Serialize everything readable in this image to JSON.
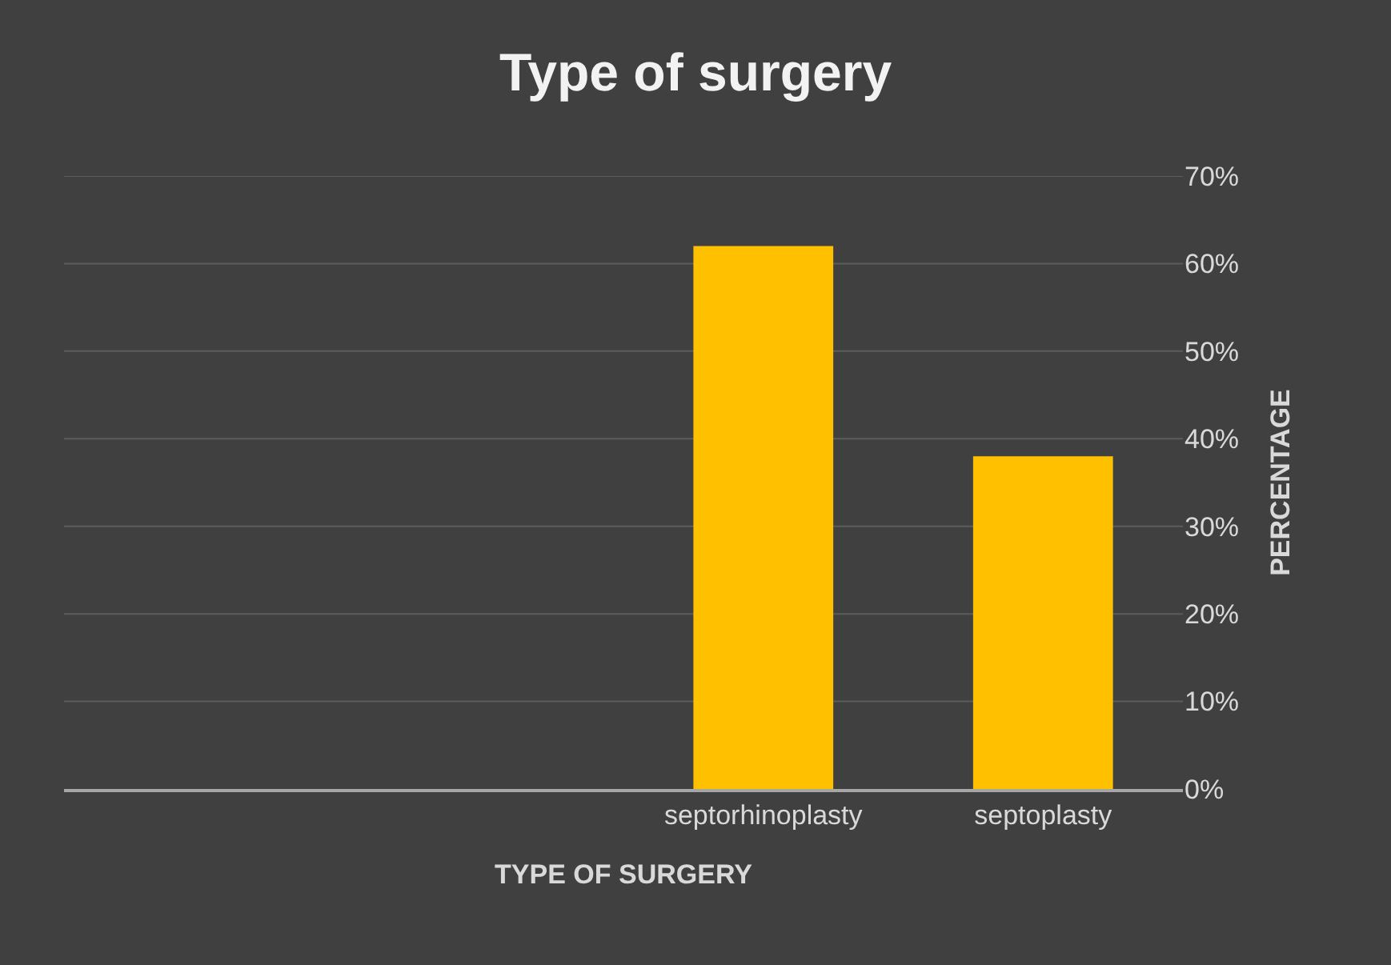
{
  "chart_data": {
    "type": "bar",
    "title": "Type of surgery",
    "xlabel": "TYPE OF SURGERY",
    "ylabel": "PERCENTAGE",
    "categories": [
      null,
      null,
      "septorhinoplasty",
      "septoplasty"
    ],
    "values": [
      null,
      null,
      62,
      38
    ],
    "color": "#ffc000",
    "ylim": [
      0,
      70
    ],
    "yticks": [
      {
        "value": 0,
        "label": "0%"
      },
      {
        "value": 10,
        "label": "10%"
      },
      {
        "value": 20,
        "label": "20%"
      },
      {
        "value": 30,
        "label": "30%"
      },
      {
        "value": 40,
        "label": "40%"
      },
      {
        "value": 50,
        "label": "50%"
      },
      {
        "value": 60,
        "label": "60%"
      },
      {
        "value": 70,
        "label": "70%"
      }
    ],
    "grid": "y"
  }
}
